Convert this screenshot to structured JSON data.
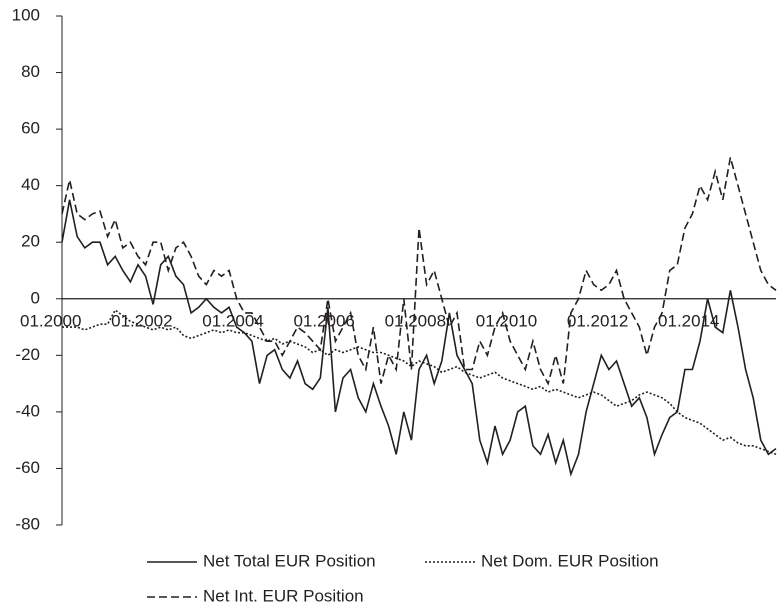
{
  "chart_data": {
    "type": "line",
    "categories": [
      "01.2000",
      null,
      null,
      null,
      null,
      null,
      null,
      null,
      null,
      null,
      null,
      null,
      "01.2002",
      null,
      null,
      null,
      null,
      null,
      null,
      null,
      null,
      null,
      null,
      null,
      "01.2004",
      null,
      null,
      null,
      null,
      null,
      null,
      null,
      null,
      null,
      null,
      null,
      "01.2006",
      null,
      null,
      null,
      null,
      null,
      null,
      null,
      null,
      null,
      null,
      null,
      "01.2008",
      null,
      null,
      null,
      null,
      null,
      null,
      null,
      null,
      null,
      null,
      null,
      "01.2010",
      null,
      null,
      null,
      null,
      null,
      null,
      null,
      null,
      null,
      null,
      null,
      "01.2012",
      null,
      null,
      null,
      null,
      null,
      null,
      null,
      null,
      null,
      null,
      null,
      "01.2014",
      null,
      null,
      null,
      null,
      null,
      null,
      null,
      null,
      null,
      null
    ],
    "series": [
      {
        "name": "Net Total EUR Position",
        "color": "#231f20",
        "dash": "solid",
        "values": [
          20,
          35,
          22,
          18,
          20,
          20,
          12,
          15,
          10,
          6,
          12,
          8,
          -2,
          12,
          15,
          8,
          5,
          -5,
          -3,
          0,
          -3,
          -5,
          -3,
          -10,
          -12,
          -15,
          -30,
          -20,
          -18,
          -25,
          -28,
          -22,
          -30,
          -32,
          -28,
          -3,
          -40,
          -28,
          -25,
          -35,
          -40,
          -30,
          -38,
          -45,
          -55,
          -40,
          -50,
          -25,
          -20,
          -30,
          -22,
          -5,
          -20,
          -25,
          -30,
          -50,
          -58,
          -45,
          -55,
          -50,
          -40,
          -38,
          -52,
          -55,
          -48,
          -58,
          -50,
          -62,
          -55,
          -40,
          -30,
          -20,
          -25,
          -22,
          -30,
          -38,
          -35,
          -42,
          -55,
          -48,
          -42,
          -40,
          -25,
          -25,
          -15,
          0,
          -10,
          -12,
          3,
          -10,
          -25,
          -35,
          -50,
          -55,
          -53
        ]
      },
      {
        "name": "Net Dom. EUR Position",
        "color": "#231f20",
        "dash": "dotted",
        "values": [
          -10,
          -10,
          -10,
          -11,
          -10,
          -9,
          -9,
          -4,
          -6,
          -8,
          -9,
          -10,
          -11,
          -10,
          -11,
          -10,
          -13,
          -14,
          -13,
          -12,
          -11,
          -12,
          -11,
          -12,
          -12,
          -13,
          -14,
          -15,
          -14,
          -16,
          -15,
          -16,
          -17,
          -19,
          -18,
          -20,
          -18,
          -19,
          -18,
          -17,
          -18,
          -19,
          -19,
          -20,
          -21,
          -22,
          -24,
          -22,
          -23,
          -24,
          -26,
          -25,
          -24,
          -26,
          -27,
          -28,
          -27,
          -26,
          -28,
          -29,
          -30,
          -31,
          -32,
          -31,
          -33,
          -32,
          -33,
          -34,
          -35,
          -34,
          -33,
          -34,
          -36,
          -38,
          -37,
          -36,
          -34,
          -33,
          -34,
          -35,
          -37,
          -40,
          -42,
          -43,
          -44,
          -46,
          -48,
          -50,
          -49,
          -51,
          -52,
          -52,
          -53,
          -54,
          -55
        ]
      },
      {
        "name": "Net Int. EUR Position",
        "color": "#231f20",
        "dash": "dashed",
        "values": [
          30,
          42,
          30,
          28,
          30,
          31,
          22,
          28,
          18,
          20,
          15,
          12,
          20,
          20,
          10,
          18,
          20,
          15,
          8,
          5,
          10,
          8,
          10,
          0,
          -5,
          -5,
          -10,
          -15,
          -15,
          -20,
          -15,
          -10,
          -12,
          -15,
          -18,
          0,
          -15,
          -10,
          -5,
          -20,
          -25,
          -10,
          -30,
          -20,
          -25,
          0,
          -25,
          25,
          5,
          10,
          0,
          -10,
          -5,
          -25,
          -25,
          -15,
          -20,
          -10,
          -5,
          -15,
          -20,
          -25,
          -15,
          -25,
          -30,
          -20,
          -30,
          -5,
          0,
          10,
          5,
          3,
          5,
          10,
          0,
          -5,
          -10,
          -20,
          -10,
          -5,
          10,
          12,
          25,
          30,
          40,
          35,
          45,
          35,
          50,
          40,
          30,
          20,
          10,
          5,
          3
        ]
      }
    ],
    "ylim": [
      -80,
      100
    ],
    "yticks": [
      -80,
      -60,
      -40,
      -20,
      0,
      20,
      40,
      60,
      80,
      100
    ]
  }
}
